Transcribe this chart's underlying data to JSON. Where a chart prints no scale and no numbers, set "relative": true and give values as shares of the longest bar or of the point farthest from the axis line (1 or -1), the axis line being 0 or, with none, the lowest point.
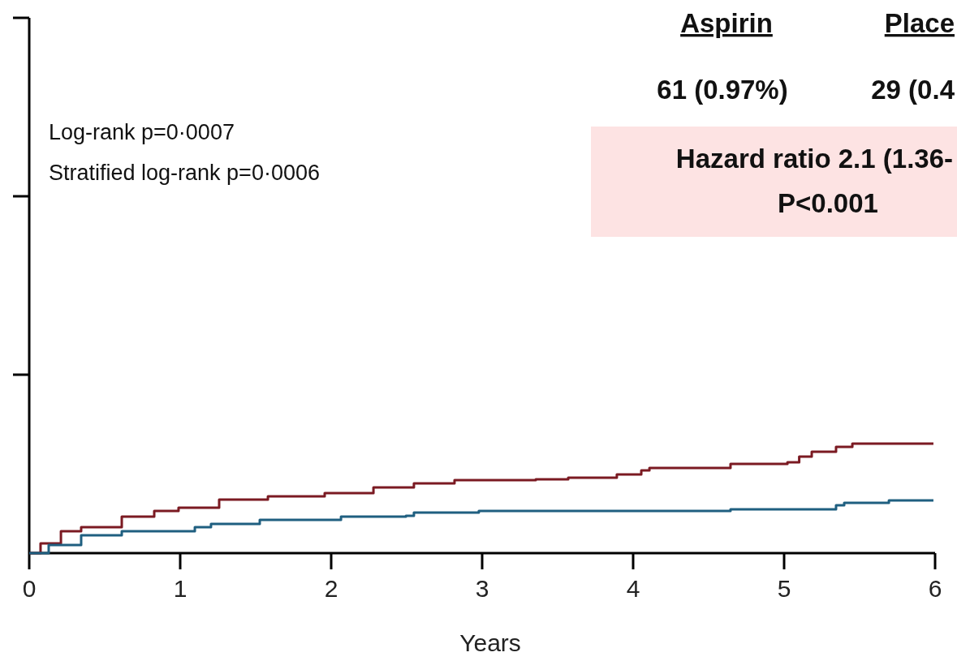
{
  "chart_data": {
    "type": "step",
    "relative": true,
    "xlabel": "Years",
    "xlim": [
      0,
      6
    ],
    "xticks": [
      0,
      1,
      2,
      3,
      4,
      5,
      6
    ],
    "annotations": [
      "Log-rank p=0·0007",
      "Stratified log-rank p=0·0006",
      "Aspirin",
      "Place",
      "61 (0.97%)",
      "29 (0.4",
      "Hazard ratio 2.1 (1.36-",
      "P<0.001"
    ],
    "series": [
      {
        "color": "#7b1a22",
        "x": [
          0,
          0.075,
          0.21,
          0.344,
          0.613,
          0.828,
          0.989,
          1.258,
          1.581,
          1.957,
          2.28,
          2.548,
          2.817,
          3.355,
          3.57,
          3.892,
          4.054,
          4.108,
          4.645,
          5.022,
          5.1,
          5.183,
          5.344,
          5.452,
          5.989
        ],
        "values": [
          0,
          0.089,
          0.2,
          0.237,
          0.333,
          0.385,
          0.415,
          0.489,
          0.519,
          0.548,
          0.6,
          0.637,
          0.667,
          0.674,
          0.689,
          0.719,
          0.756,
          0.778,
          0.815,
          0.83,
          0.881,
          0.926,
          0.97,
          1,
          1
        ]
      },
      {
        "color": "#1f5f80",
        "x": [
          0,
          0.129,
          0.344,
          0.613,
          1.097,
          1.204,
          1.527,
          2.065,
          2.495,
          2.548,
          2.978,
          4.591,
          4.645,
          5.344,
          5.398,
          5.694,
          5.989
        ],
        "values": [
          0,
          0.074,
          0.163,
          0.2,
          0.237,
          0.267,
          0.304,
          0.333,
          0.341,
          0.37,
          0.385,
          0.385,
          0.4,
          0.437,
          0.459,
          0.481,
          0.481
        ]
      }
    ]
  }
}
